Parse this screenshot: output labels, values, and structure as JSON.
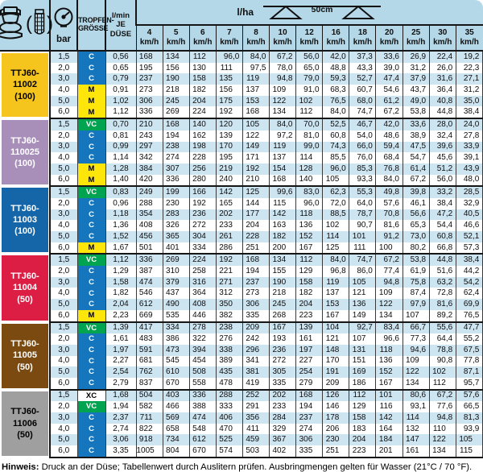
{
  "header": {
    "bar_label": "bar",
    "droplet_label_line1": "TROPFEN-",
    "droplet_label_line2": "GRÖSSE",
    "flow_label_line1": "l/min",
    "flow_label_line2": "JE DÜSE",
    "rate_label": "l/ha",
    "spacing_label": "50cm",
    "speed_unit": "km/h",
    "speeds": [
      "4",
      "5",
      "6",
      "7",
      "8",
      "10",
      "12",
      "16",
      "18",
      "20",
      "25",
      "30",
      "35"
    ]
  },
  "colors": {
    "header_bg": "#b4d8e8",
    "stripe_row": "#cde4f1",
    "white_row": "#ffffff",
    "border_dark": "#161616"
  },
  "droplet_codes": {
    "C": {
      "bg": "#1576bd",
      "fg": "#ffffff"
    },
    "M": {
      "bg": "#ffe60a",
      "fg": "#000000"
    },
    "VC": {
      "bg": "#00a350",
      "fg": "#ffffff"
    },
    "XC": {
      "bg": "transparent",
      "fg": "#000000"
    }
  },
  "groups": [
    {
      "id": "ttj60-11002",
      "name_lines": [
        "TTJ60-",
        "11002",
        "(100)"
      ],
      "color": "#f5c41d",
      "text_color": "#000000",
      "rows": [
        {
          "bar": "1,5",
          "code": "C",
          "lmin": "0,56",
          "values": [
            "168",
            "134",
            "112",
            "96,0",
            "84,0",
            "67,2",
            "56,0",
            "42,0",
            "37,3",
            "33,6",
            "26,9",
            "22,4",
            "19,2"
          ]
        },
        {
          "bar": "2,0",
          "code": "C",
          "lmin": "0,65",
          "values": [
            "195",
            "156",
            "130",
            "111",
            "97,5",
            "78,0",
            "65,0",
            "48,8",
            "43,3",
            "39,0",
            "31,2",
            "26,0",
            "22,3"
          ]
        },
        {
          "bar": "3,0",
          "code": "C",
          "lmin": "0,79",
          "values": [
            "237",
            "190",
            "158",
            "135",
            "119",
            "94,8",
            "79,0",
            "59,3",
            "52,7",
            "47,4",
            "37,9",
            "31,6",
            "27,1"
          ]
        },
        {
          "bar": "4,0",
          "code": "M",
          "lmin": "0,91",
          "values": [
            "273",
            "218",
            "182",
            "156",
            "137",
            "109",
            "91,0",
            "68,3",
            "60,7",
            "54,6",
            "43,7",
            "36,4",
            "31,2"
          ]
        },
        {
          "bar": "5,0",
          "code": "M",
          "lmin": "1,02",
          "values": [
            "306",
            "245",
            "204",
            "175",
            "153",
            "122",
            "102",
            "76,5",
            "68,0",
            "61,2",
            "49,0",
            "40,8",
            "35,0"
          ]
        },
        {
          "bar": "6,0",
          "code": "M",
          "lmin": "1,12",
          "values": [
            "336",
            "269",
            "224",
            "192",
            "168",
            "134",
            "112",
            "84,0",
            "74,7",
            "67,2",
            "53,8",
            "44,8",
            "38,4"
          ]
        }
      ]
    },
    {
      "id": "ttj60-110025",
      "name_lines": [
        "TTJ60-",
        "110025",
        "(100)"
      ],
      "color": "#a88fba",
      "text_color": "#ffffff",
      "rows": [
        {
          "bar": "1,5",
          "code": "VC",
          "lmin": "0,70",
          "values": [
            "210",
            "168",
            "140",
            "120",
            "105",
            "84,0",
            "70,0",
            "52,5",
            "46,7",
            "42,0",
            "33,6",
            "28,0",
            "24,0"
          ]
        },
        {
          "bar": "2,0",
          "code": "C",
          "lmin": "0,81",
          "values": [
            "243",
            "194",
            "162",
            "139",
            "122",
            "97,2",
            "81,0",
            "60,8",
            "54,0",
            "48,6",
            "38,9",
            "32,4",
            "27,8"
          ]
        },
        {
          "bar": "3,0",
          "code": "C",
          "lmin": "0,99",
          "values": [
            "297",
            "238",
            "198",
            "170",
            "149",
            "119",
            "99,0",
            "74,3",
            "66,0",
            "59,4",
            "47,5",
            "39,6",
            "33,9"
          ]
        },
        {
          "bar": "4,0",
          "code": "C",
          "lmin": "1,14",
          "values": [
            "342",
            "274",
            "228",
            "195",
            "171",
            "137",
            "114",
            "85,5",
            "76,0",
            "68,4",
            "54,7",
            "45,6",
            "39,1"
          ]
        },
        {
          "bar": "5,0",
          "code": "M",
          "lmin": "1,28",
          "values": [
            "384",
            "307",
            "256",
            "219",
            "192",
            "154",
            "128",
            "96,0",
            "85,3",
            "76,8",
            "61,4",
            "51,2",
            "43,9"
          ]
        },
        {
          "bar": "6,0",
          "code": "M",
          "lmin": "1,40",
          "values": [
            "420",
            "336",
            "280",
            "240",
            "210",
            "168",
            "140",
            "105",
            "93,3",
            "84,0",
            "67,2",
            "56,0",
            "48,0"
          ]
        }
      ]
    },
    {
      "id": "ttj60-11003",
      "name_lines": [
        "TTJ60-",
        "11003",
        "(100)"
      ],
      "color": "#1566a8",
      "text_color": "#ffffff",
      "rows": [
        {
          "bar": "1,5",
          "code": "VC",
          "lmin": "0,83",
          "values": [
            "249",
            "199",
            "166",
            "142",
            "125",
            "99,6",
            "83,0",
            "62,3",
            "55,3",
            "49,8",
            "39,8",
            "33,2",
            "28,5"
          ]
        },
        {
          "bar": "2,0",
          "code": "C",
          "lmin": "0,96",
          "values": [
            "288",
            "230",
            "192",
            "165",
            "144",
            "115",
            "96,0",
            "72,0",
            "64,0",
            "57,6",
            "46,1",
            "38,4",
            "32,9"
          ]
        },
        {
          "bar": "3,0",
          "code": "C",
          "lmin": "1,18",
          "values": [
            "354",
            "283",
            "236",
            "202",
            "177",
            "142",
            "118",
            "88,5",
            "78,7",
            "70,8",
            "56,6",
            "47,2",
            "40,5"
          ]
        },
        {
          "bar": "4,0",
          "code": "C",
          "lmin": "1,36",
          "values": [
            "408",
            "326",
            "272",
            "233",
            "204",
            "163",
            "136",
            "102",
            "90,7",
            "81,6",
            "65,3",
            "54,4",
            "46,6"
          ]
        },
        {
          "bar": "5,0",
          "code": "C",
          "lmin": "1,52",
          "values": [
            "456",
            "365",
            "304",
            "261",
            "228",
            "182",
            "152",
            "114",
            "101",
            "91,2",
            "73,0",
            "60,8",
            "52,1"
          ]
        },
        {
          "bar": "6,0",
          "code": "M",
          "lmin": "1,67",
          "values": [
            "501",
            "401",
            "334",
            "286",
            "251",
            "200",
            "167",
            "125",
            "111",
            "100",
            "80,2",
            "66,8",
            "57,3"
          ]
        }
      ]
    },
    {
      "id": "ttj60-11004",
      "name_lines": [
        "TTJ60-",
        "11004",
        "(50)"
      ],
      "color": "#dc1e45",
      "text_color": "#ffffff",
      "rows": [
        {
          "bar": "1,5",
          "code": "VC",
          "lmin": "1,12",
          "values": [
            "336",
            "269",
            "224",
            "192",
            "168",
            "134",
            "112",
            "84,0",
            "74,7",
            "67,2",
            "53,8",
            "44,8",
            "38,4"
          ]
        },
        {
          "bar": "2,0",
          "code": "C",
          "lmin": "1,29",
          "values": [
            "387",
            "310",
            "258",
            "221",
            "194",
            "155",
            "129",
            "96,8",
            "86,0",
            "77,4",
            "61,9",
            "51,6",
            "44,2"
          ]
        },
        {
          "bar": "3,0",
          "code": "C",
          "lmin": "1,58",
          "values": [
            "474",
            "379",
            "316",
            "271",
            "237",
            "190",
            "158",
            "119",
            "105",
            "94,8",
            "75,8",
            "63,2",
            "54,2"
          ]
        },
        {
          "bar": "4,0",
          "code": "C",
          "lmin": "1,82",
          "values": [
            "546",
            "437",
            "364",
            "312",
            "273",
            "218",
            "182",
            "137",
            "121",
            "109",
            "87,4",
            "72,8",
            "62,4"
          ]
        },
        {
          "bar": "5,0",
          "code": "C",
          "lmin": "2,04",
          "values": [
            "612",
            "490",
            "408",
            "350",
            "306",
            "245",
            "204",
            "153",
            "136",
            "122",
            "97,9",
            "81,6",
            "69,9"
          ]
        },
        {
          "bar": "6,0",
          "code": "M",
          "lmin": "2,23",
          "values": [
            "669",
            "535",
            "446",
            "382",
            "335",
            "268",
            "223",
            "167",
            "149",
            "134",
            "107",
            "89,2",
            "76,5"
          ]
        }
      ]
    },
    {
      "id": "ttj60-11005",
      "name_lines": [
        "TTJ60-",
        "11005",
        "(50)"
      ],
      "color": "#7a4a10",
      "text_color": "#ffffff",
      "rows": [
        {
          "bar": "1,5",
          "code": "VC",
          "lmin": "1,39",
          "values": [
            "417",
            "334",
            "278",
            "238",
            "209",
            "167",
            "139",
            "104",
            "92,7",
            "83,4",
            "66,7",
            "55,6",
            "47,7"
          ]
        },
        {
          "bar": "2,0",
          "code": "C",
          "lmin": "1,61",
          "values": [
            "483",
            "386",
            "322",
            "276",
            "242",
            "193",
            "161",
            "121",
            "107",
            "96,6",
            "77,3",
            "64,4",
            "55,2"
          ]
        },
        {
          "bar": "3,0",
          "code": "C",
          "lmin": "1,97",
          "values": [
            "591",
            "473",
            "394",
            "338",
            "296",
            "236",
            "197",
            "148",
            "131",
            "118",
            "94,6",
            "78,8",
            "67,5"
          ]
        },
        {
          "bar": "4,0",
          "code": "C",
          "lmin": "2,27",
          "values": [
            "681",
            "545",
            "454",
            "389",
            "341",
            "272",
            "227",
            "170",
            "151",
            "136",
            "109",
            "90,8",
            "77,8"
          ]
        },
        {
          "bar": "5,0",
          "code": "C",
          "lmin": "2,54",
          "values": [
            "762",
            "610",
            "508",
            "435",
            "381",
            "305",
            "254",
            "191",
            "169",
            "152",
            "122",
            "102",
            "87,1"
          ]
        },
        {
          "bar": "6,0",
          "code": "C",
          "lmin": "2,79",
          "values": [
            "837",
            "670",
            "558",
            "478",
            "419",
            "335",
            "279",
            "209",
            "186",
            "167",
            "134",
            "112",
            "95,7"
          ]
        }
      ]
    },
    {
      "id": "ttj60-11006",
      "name_lines": [
        "TTJ60-",
        "11006",
        "(50)"
      ],
      "color": "#9f9fa0",
      "text_color": "#000000",
      "rows": [
        {
          "bar": "1,5",
          "code": "XC",
          "lmin": "1,68",
          "values": [
            "504",
            "403",
            "336",
            "288",
            "252",
            "202",
            "168",
            "126",
            "112",
            "101",
            "80,6",
            "67,2",
            "57,6"
          ]
        },
        {
          "bar": "2,0",
          "code": "VC",
          "lmin": "1,94",
          "values": [
            "582",
            "466",
            "388",
            "333",
            "291",
            "233",
            "194",
            "146",
            "129",
            "116",
            "93,1",
            "77,6",
            "66,5"
          ]
        },
        {
          "bar": "3,0",
          "code": "C",
          "lmin": "2,37",
          "values": [
            "711",
            "569",
            "474",
            "406",
            "356",
            "284",
            "237",
            "178",
            "158",
            "142",
            "114",
            "94,8",
            "81,3"
          ]
        },
        {
          "bar": "4,0",
          "code": "C",
          "lmin": "2,74",
          "values": [
            "822",
            "658",
            "548",
            "470",
            "411",
            "329",
            "274",
            "206",
            "183",
            "164",
            "132",
            "110",
            "93,9"
          ]
        },
        {
          "bar": "5,0",
          "code": "C",
          "lmin": "3,06",
          "values": [
            "918",
            "734",
            "612",
            "525",
            "459",
            "367",
            "306",
            "230",
            "204",
            "184",
            "147",
            "122",
            "105"
          ]
        },
        {
          "bar": "6,0",
          "code": "C",
          "lmin": "3,35",
          "values": [
            "1005",
            "804",
            "670",
            "574",
            "503",
            "402",
            "335",
            "251",
            "223",
            "201",
            "161",
            "134",
            "115"
          ]
        }
      ]
    }
  ],
  "footnote": {
    "bold": "Hinweis:",
    "text": " Druck an der Düse; Tabellenwert durch Auslitern prüfen. Ausbringmengen gelten für Wasser (21°C / 70 °F)."
  }
}
